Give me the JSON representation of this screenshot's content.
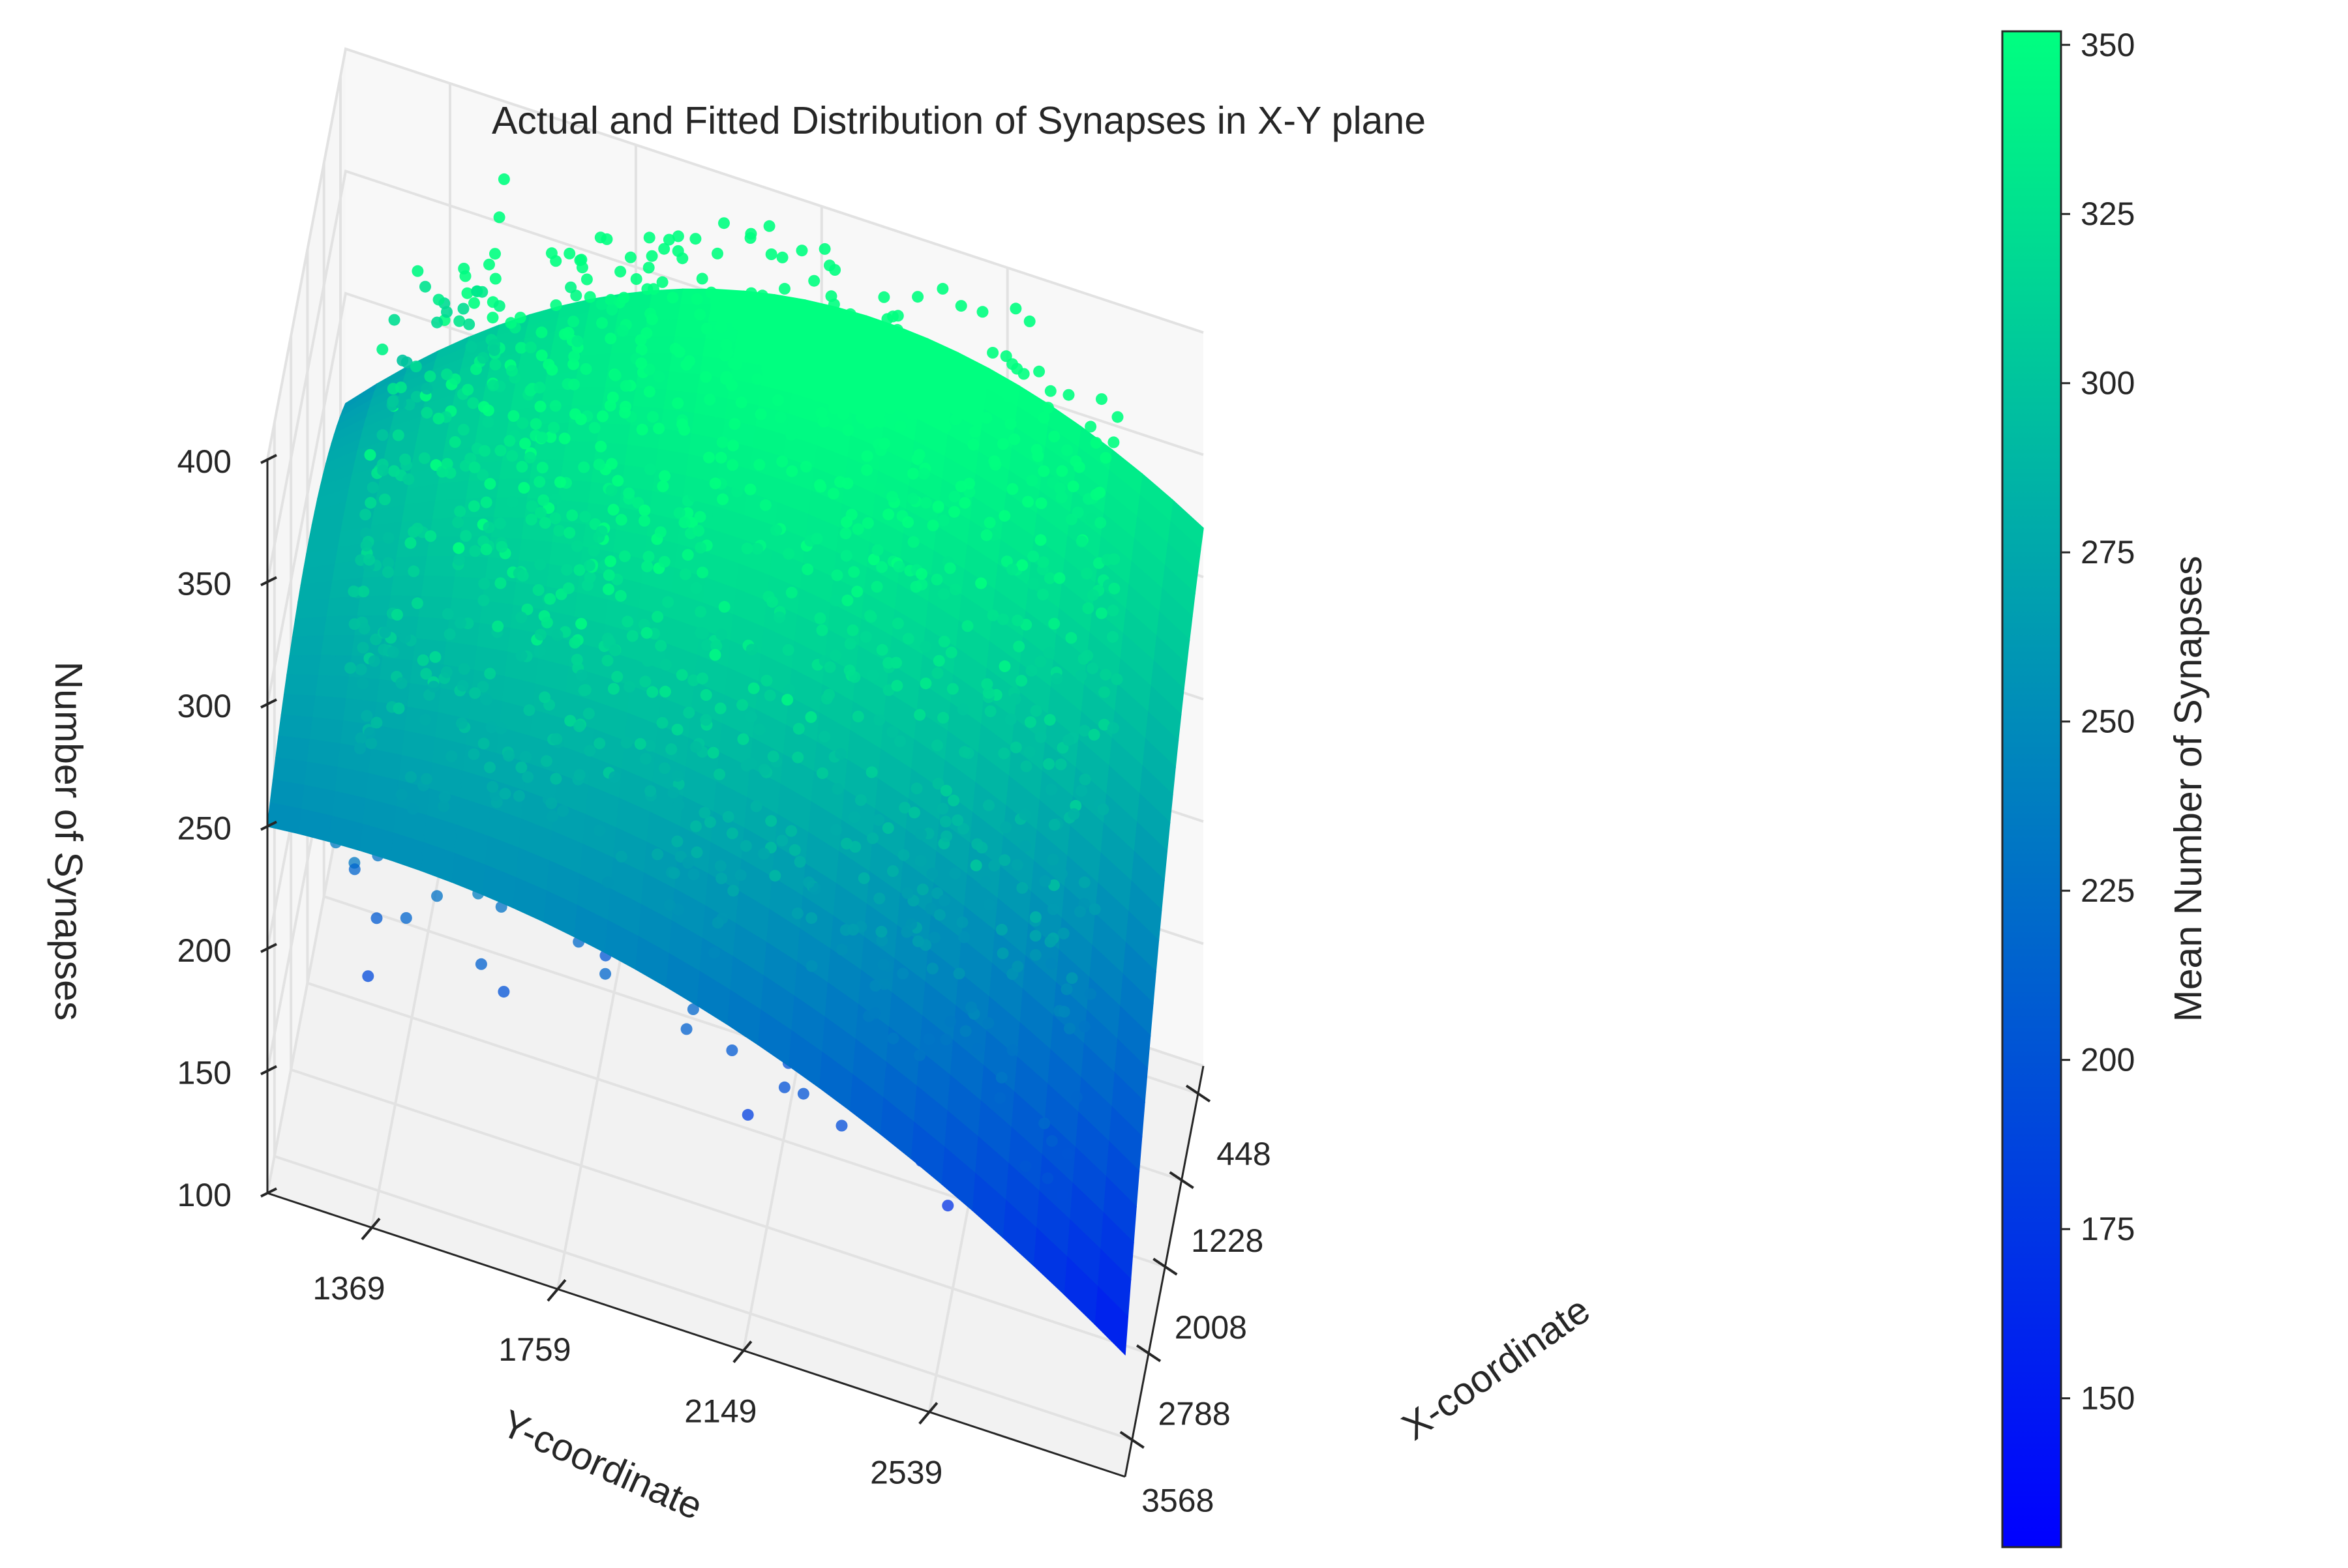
{
  "chart_data": {
    "type": "scatter",
    "subtype": "3d-scatter-with-fitted-surface",
    "title": "Actual and Fitted Distribution of Synapses in X-Y plane",
    "xlabel": "X-coordinate",
    "ylabel": "Y-coordinate",
    "zlabel": "Number of Synapses",
    "x_ticks": [
      448,
      1228,
      2008,
      2788,
      3568
    ],
    "y_ticks": [
      1369,
      1759,
      2149,
      2539
    ],
    "z_ticks": [
      100,
      150,
      200,
      250,
      300,
      350,
      400
    ],
    "xlim": [
      200,
      3900
    ],
    "ylim": [
      1150,
      2950
    ],
    "zlim": [
      100,
      400
    ],
    "colorbar": {
      "label": "Mean Number of Synapses",
      "colormap": "winter",
      "color_low": "#0000ff",
      "color_high": "#00ff80",
      "range": [
        128,
        352
      ],
      "ticks": [
        150,
        175,
        200,
        225,
        250,
        275,
        300,
        325,
        350
      ]
    },
    "grid": true,
    "fitted_surface": {
      "description_of_shape": "quadratic surface, high toward low X / mid Y, low toward high X / high Y",
      "corners": [
        {
          "x": 200,
          "y": 1150,
          "z": 280
        },
        {
          "x": 200,
          "y": 2950,
          "z": 345
        },
        {
          "x": 3900,
          "y": 1150,
          "z": 275
        },
        {
          "x": 3900,
          "y": 2950,
          "z": 175
        }
      ]
    },
    "point_sample_count": 2200
  }
}
